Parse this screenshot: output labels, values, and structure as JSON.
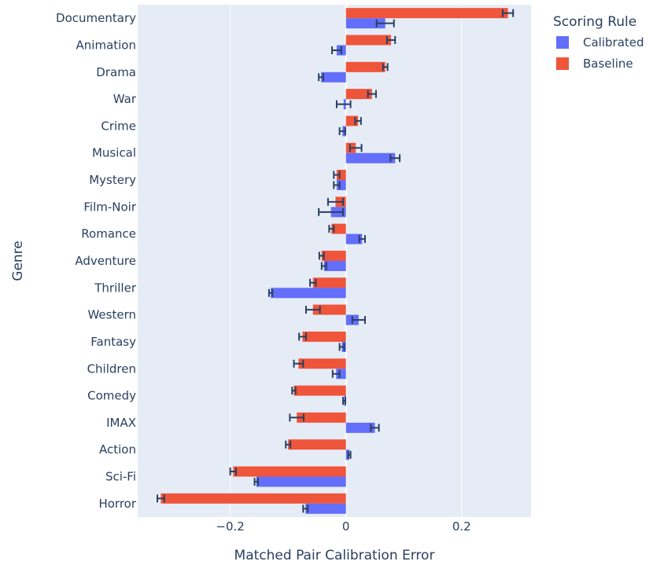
{
  "chart_data": {
    "type": "bar",
    "orientation": "horizontal",
    "xlabel": "Matched Pair Calibration Error",
    "ylabel": "Genre",
    "xlim": [
      -0.36,
      0.32
    ],
    "xticks": [
      -0.2,
      0,
      0.2
    ],
    "xtick_labels": [
      "−0.2",
      "0",
      "0.2"
    ],
    "grid": true,
    "legend_title": "Scoring Rule",
    "legend_position": "top-right",
    "categories": [
      "Documentary",
      "Animation",
      "Drama",
      "War",
      "Crime",
      "Musical",
      "Mystery",
      "Film-Noir",
      "Romance",
      "Adventure",
      "Thriller",
      "Western",
      "Fantasy",
      "Children",
      "Comedy",
      "IMAX",
      "Action",
      "Sci-Fi",
      "Horror"
    ],
    "series": [
      {
        "name": "Calibrated",
        "color": "#636efa",
        "values": [
          0.068,
          -0.016,
          -0.043,
          -0.004,
          -0.006,
          0.085,
          -0.016,
          -0.026,
          0.028,
          -0.038,
          -0.13,
          0.022,
          -0.007,
          -0.017,
          -0.003,
          0.05,
          0.006,
          -0.155,
          -0.07
        ],
        "errors": [
          0.015,
          0.008,
          0.004,
          0.012,
          0.005,
          0.008,
          0.005,
          0.021,
          0.005,
          0.004,
          0.003,
          0.011,
          0.004,
          0.006,
          0.002,
          0.007,
          0.002,
          0.003,
          0.004
        ]
      },
      {
        "name": "Baseline",
        "color": "#ef553b",
        "values": [
          0.28,
          0.078,
          0.068,
          0.045,
          0.021,
          0.017,
          -0.016,
          -0.018,
          -0.025,
          -0.042,
          -0.057,
          -0.057,
          -0.075,
          -0.082,
          -0.09,
          -0.085,
          -0.1,
          -0.195,
          -0.32
        ],
        "errors": [
          0.009,
          0.007,
          0.004,
          0.007,
          0.005,
          0.01,
          0.005,
          0.013,
          0.004,
          0.004,
          0.005,
          0.012,
          0.006,
          0.008,
          0.003,
          0.012,
          0.004,
          0.005,
          0.006
        ]
      }
    ]
  }
}
